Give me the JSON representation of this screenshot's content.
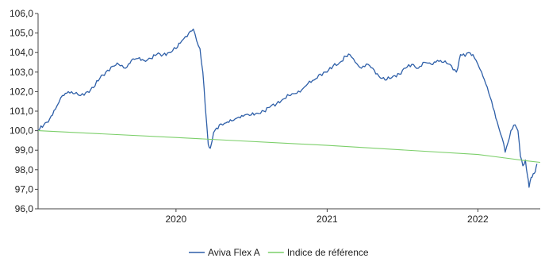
{
  "chart_data": {
    "type": "line",
    "title": "",
    "xlabel": "",
    "ylabel": "",
    "ylim": [
      96.0,
      106.0
    ],
    "xlim": [
      "2019-02-01",
      "2022-06-01"
    ],
    "y_ticks": [
      "96,0",
      "97,0",
      "98,0",
      "99,0",
      "100,0",
      "101,0",
      "102,0",
      "103,0",
      "104,0",
      "105,0",
      "106,0"
    ],
    "x_ticks": [
      {
        "date": "2020-01-01",
        "label": "2020"
      },
      {
        "date": "2021-01-01",
        "label": "2021"
      },
      {
        "date": "2022-01-01",
        "label": "2022"
      }
    ],
    "grid": false,
    "legend_position": "bottom",
    "series": [
      {
        "name": "Aviva Flex A",
        "color": "#2e5fa8",
        "points": [
          [
            "2019-02-01",
            100.0
          ],
          [
            "2019-02-15",
            100.3
          ],
          [
            "2019-03-01",
            100.6
          ],
          [
            "2019-03-15",
            101.1
          ],
          [
            "2019-04-01",
            101.8
          ],
          [
            "2019-04-15",
            102.0
          ],
          [
            "2019-05-01",
            101.9
          ],
          [
            "2019-05-15",
            101.8
          ],
          [
            "2019-06-01",
            102.0
          ],
          [
            "2019-06-15",
            102.2
          ],
          [
            "2019-07-01",
            102.7
          ],
          [
            "2019-07-15",
            103.0
          ],
          [
            "2019-08-01",
            103.3
          ],
          [
            "2019-08-15",
            103.4
          ],
          [
            "2019-09-01",
            103.2
          ],
          [
            "2019-09-15",
            103.6
          ],
          [
            "2019-10-01",
            103.7
          ],
          [
            "2019-10-15",
            103.6
          ],
          [
            "2019-11-01",
            103.7
          ],
          [
            "2019-11-15",
            103.9
          ],
          [
            "2019-12-01",
            103.9
          ],
          [
            "2019-12-15",
            104.0
          ],
          [
            "2020-01-01",
            104.2
          ],
          [
            "2020-01-15",
            104.6
          ],
          [
            "2020-02-01",
            105.0
          ],
          [
            "2020-02-12",
            105.2
          ],
          [
            "2020-02-20",
            104.6
          ],
          [
            "2020-02-28",
            104.2
          ],
          [
            "2020-03-06",
            103.0
          ],
          [
            "2020-03-12",
            101.2
          ],
          [
            "2020-03-19",
            99.3
          ],
          [
            "2020-03-24",
            99.1
          ],
          [
            "2020-04-01",
            99.9
          ],
          [
            "2020-04-15",
            100.3
          ],
          [
            "2020-05-01",
            100.4
          ],
          [
            "2020-05-15",
            100.5
          ],
          [
            "2020-06-01",
            100.7
          ],
          [
            "2020-06-15",
            100.8
          ],
          [
            "2020-07-01",
            100.8
          ],
          [
            "2020-07-15",
            100.9
          ],
          [
            "2020-08-01",
            101.0
          ],
          [
            "2020-08-15",
            101.2
          ],
          [
            "2020-09-01",
            101.4
          ],
          [
            "2020-09-15",
            101.6
          ],
          [
            "2020-10-01",
            101.8
          ],
          [
            "2020-10-15",
            101.9
          ],
          [
            "2020-11-01",
            102.1
          ],
          [
            "2020-11-15",
            102.4
          ],
          [
            "2020-12-01",
            102.6
          ],
          [
            "2020-12-15",
            102.9
          ],
          [
            "2021-01-01",
            103.0
          ],
          [
            "2021-01-15",
            103.3
          ],
          [
            "2021-02-01",
            103.5
          ],
          [
            "2021-02-15",
            103.8
          ],
          [
            "2021-02-25",
            103.9
          ],
          [
            "2021-03-10",
            103.5
          ],
          [
            "2021-03-25",
            103.2
          ],
          [
            "2021-04-10",
            103.4
          ],
          [
            "2021-04-25",
            103.1
          ],
          [
            "2021-05-10",
            102.7
          ],
          [
            "2021-05-25",
            102.6
          ],
          [
            "2021-06-10",
            102.8
          ],
          [
            "2021-06-25",
            102.9
          ],
          [
            "2021-07-10",
            103.2
          ],
          [
            "2021-07-25",
            103.4
          ],
          [
            "2021-08-10",
            103.2
          ],
          [
            "2021-08-25",
            103.5
          ],
          [
            "2021-09-10",
            103.4
          ],
          [
            "2021-09-25",
            103.6
          ],
          [
            "2021-10-10",
            103.5
          ],
          [
            "2021-10-25",
            103.4
          ],
          [
            "2021-11-10",
            103.0
          ],
          [
            "2021-11-20",
            103.9
          ],
          [
            "2021-12-01",
            103.8
          ],
          [
            "2021-12-10",
            104.0
          ],
          [
            "2021-12-20",
            103.9
          ],
          [
            "2022-01-01",
            103.4
          ],
          [
            "2022-01-10",
            103.0
          ],
          [
            "2022-01-20",
            102.4
          ],
          [
            "2022-01-31",
            101.7
          ],
          [
            "2022-02-10",
            101.0
          ],
          [
            "2022-02-20",
            100.2
          ],
          [
            "2022-03-01",
            99.6
          ],
          [
            "2022-03-08",
            98.9
          ],
          [
            "2022-03-15",
            99.4
          ],
          [
            "2022-03-22",
            100.0
          ],
          [
            "2022-04-01",
            100.3
          ],
          [
            "2022-04-08",
            100.0
          ],
          [
            "2022-04-14",
            98.7
          ],
          [
            "2022-04-20",
            98.2
          ],
          [
            "2022-04-26",
            98.5
          ],
          [
            "2022-05-01",
            97.7
          ],
          [
            "2022-05-05",
            97.1
          ],
          [
            "2022-05-10",
            97.6
          ],
          [
            "2022-05-15",
            97.8
          ],
          [
            "2022-05-20",
            97.9
          ],
          [
            "2022-05-24",
            98.3
          ]
        ]
      },
      {
        "name": "Indice de référence",
        "color": "#7ccf6a",
        "points": [
          [
            "2019-02-01",
            100.0
          ],
          [
            "2020-01-01",
            99.65
          ],
          [
            "2021-01-01",
            99.25
          ],
          [
            "2022-01-01",
            98.78
          ],
          [
            "2022-03-01",
            98.62
          ],
          [
            "2022-05-01",
            98.45
          ],
          [
            "2022-06-01",
            98.38
          ]
        ]
      }
    ]
  }
}
